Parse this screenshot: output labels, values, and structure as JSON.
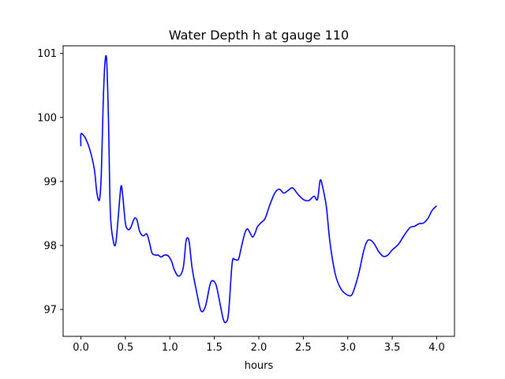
{
  "chart_data": {
    "type": "line",
    "title": "Water Depth h at gauge 110",
    "xlabel": "hours",
    "ylabel": "",
    "xlim": [
      -0.2,
      4.2
    ],
    "ylim": [
      96.58,
      101.12
    ],
    "xticks": [
      0.0,
      0.5,
      1.0,
      1.5,
      2.0,
      2.5,
      3.0,
      3.5,
      4.0
    ],
    "xtick_labels": [
      "0.0",
      "0.5",
      "1.0",
      "1.5",
      "2.0",
      "2.5",
      "3.0",
      "3.5",
      "4.0"
    ],
    "yticks": [
      97,
      98,
      99,
      100,
      101
    ],
    "ytick_labels": [
      "97",
      "98",
      "99",
      "100",
      "101"
    ],
    "grid": false,
    "series": [
      {
        "color": "#0000ff",
        "x": [
          0.0,
          0.0,
          0.03,
          0.06,
          0.1,
          0.15,
          0.18,
          0.21,
          0.23,
          0.25,
          0.27,
          0.29,
          0.31,
          0.33,
          0.36,
          0.39,
          0.42,
          0.45,
          0.47,
          0.5,
          0.53,
          0.56,
          0.6,
          0.63,
          0.66,
          0.7,
          0.74,
          0.77,
          0.8,
          0.84,
          0.87,
          0.9,
          0.94,
          0.98,
          1.02,
          1.05,
          1.1,
          1.15,
          1.18,
          1.2,
          1.22,
          1.25,
          1.3,
          1.35,
          1.4,
          1.45,
          1.48,
          1.52,
          1.56,
          1.6,
          1.63,
          1.66,
          1.7,
          1.73,
          1.77,
          1.8,
          1.84,
          1.87,
          1.9,
          1.93,
          1.96,
          1.98,
          2.02,
          2.07,
          2.12,
          2.18,
          2.23,
          2.28,
          2.33,
          2.38,
          2.44,
          2.5,
          2.56,
          2.62,
          2.66,
          2.69,
          2.72,
          2.76,
          2.8,
          2.86,
          2.92,
          2.98,
          3.04,
          3.08,
          3.13,
          3.18,
          3.22,
          3.26,
          3.3,
          3.35,
          3.4,
          3.45,
          3.5,
          3.57,
          3.63,
          3.7,
          3.75,
          3.8,
          3.85,
          3.9,
          3.95,
          4.0
        ],
        "y": [
          99.55,
          99.74,
          99.72,
          99.65,
          99.5,
          99.2,
          98.82,
          98.72,
          99.15,
          100.2,
          100.85,
          100.88,
          99.95,
          98.55,
          98.1,
          98.02,
          98.45,
          98.92,
          98.78,
          98.35,
          98.25,
          98.28,
          98.42,
          98.4,
          98.22,
          98.15,
          98.18,
          98.05,
          97.88,
          97.85,
          97.85,
          97.82,
          97.85,
          97.84,
          97.75,
          97.62,
          97.52,
          97.65,
          98.05,
          98.12,
          98.03,
          97.65,
          97.28,
          96.98,
          97.05,
          97.38,
          97.45,
          97.38,
          97.12,
          96.85,
          96.8,
          96.95,
          97.72,
          97.78,
          97.78,
          97.95,
          98.18,
          98.26,
          98.2,
          98.13,
          98.2,
          98.28,
          98.35,
          98.42,
          98.62,
          98.82,
          98.88,
          98.82,
          98.86,
          98.9,
          98.8,
          98.72,
          98.7,
          98.77,
          98.72,
          99.02,
          98.9,
          98.6,
          98.05,
          97.55,
          97.33,
          97.24,
          97.22,
          97.35,
          97.6,
          97.92,
          98.07,
          98.08,
          98.02,
          97.9,
          97.83,
          97.85,
          97.93,
          98.02,
          98.15,
          98.28,
          98.3,
          98.34,
          98.35,
          98.42,
          98.55,
          98.62
        ]
      }
    ]
  }
}
